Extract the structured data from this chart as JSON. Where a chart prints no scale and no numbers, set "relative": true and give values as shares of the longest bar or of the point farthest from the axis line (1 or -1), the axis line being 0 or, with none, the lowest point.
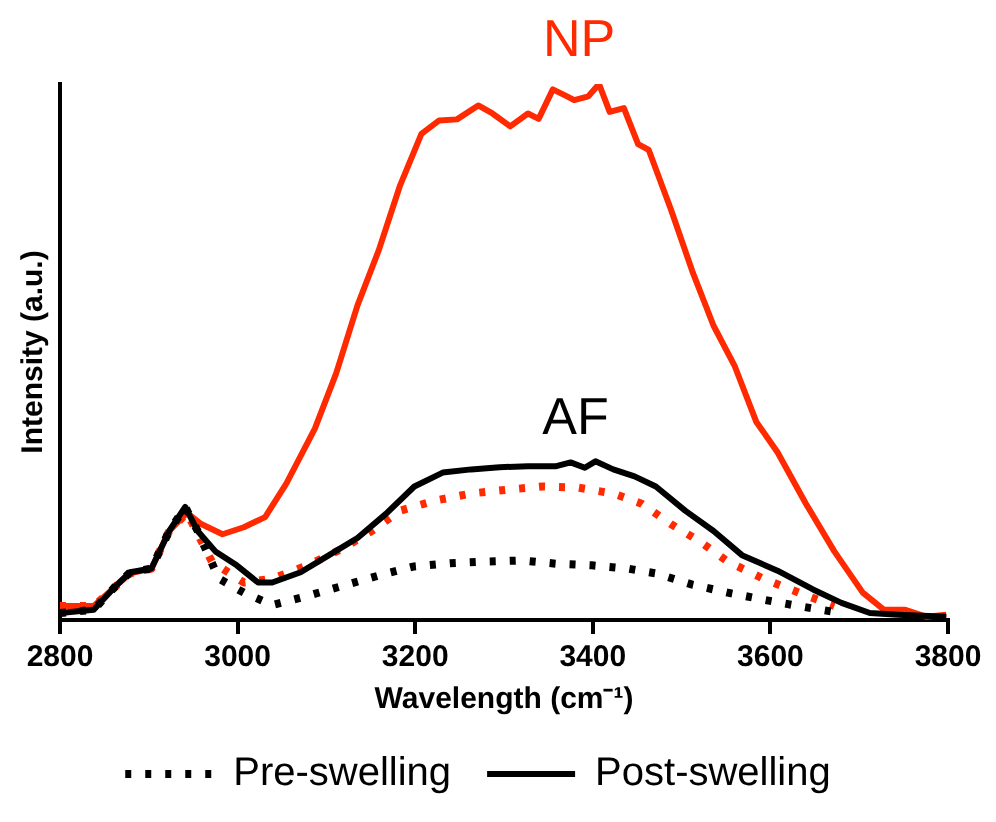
{
  "chart_data": {
    "type": "line",
    "relative": true,
    "xlabel": "Wavelength (cm⁻¹)",
    "ylabel": "Intensity (a.u.)",
    "xlim": [
      2800,
      3800
    ],
    "xticks": [
      2800,
      3000,
      3200,
      3400,
      3600,
      3800
    ],
    "grid": false,
    "legend": "bottom",
    "marker": "none",
    "line_style": "solid",
    "annotations": [
      "NP",
      "AF"
    ],
    "series": [
      {
        "name": "Pre-swelling",
        "color": "#000000",
        "line_style": "dotted",
        "x": [
          2800,
          2838,
          2863,
          2879,
          2903,
          2923,
          2941,
          2955,
          2979,
          3007,
          3039,
          3079,
          3119,
          3159,
          3199,
          3239,
          3279,
          3319,
          3359,
          3399,
          3439,
          3471,
          3512,
          3552,
          3592,
          3632,
          3672
        ],
        "values": [
          0.013,
          0.019,
          0.064,
          0.089,
          0.096,
          0.166,
          0.211,
          0.166,
          0.077,
          0.051,
          0.028,
          0.045,
          0.064,
          0.083,
          0.1,
          0.106,
          0.109,
          0.111,
          0.105,
          0.102,
          0.096,
          0.087,
          0.066,
          0.051,
          0.038,
          0.026,
          0.015
        ]
      },
      {
        "name": "Post-swelling",
        "color": "#000000",
        "x": [
          2800,
          2838,
          2863,
          2879,
          2903,
          2923,
          2941,
          2955,
          2975,
          2999,
          3023,
          3039,
          3071,
          3103,
          3135,
          3167,
          3199,
          3231,
          3263,
          3295,
          3327,
          3359,
          3375,
          3391,
          3403,
          3423,
          3447,
          3471,
          3504,
          3536,
          3568,
          3608,
          3648,
          3680,
          3712,
          3744,
          3798
        ],
        "values": [
          0.013,
          0.019,
          0.064,
          0.089,
          0.096,
          0.166,
          0.211,
          0.166,
          0.128,
          0.102,
          0.07,
          0.07,
          0.089,
          0.121,
          0.153,
          0.198,
          0.249,
          0.275,
          0.281,
          0.285,
          0.287,
          0.287,
          0.294,
          0.284,
          0.296,
          0.281,
          0.268,
          0.249,
          0.204,
          0.166,
          0.121,
          0.092,
          0.057,
          0.032,
          0.013,
          0.01,
          0.006
        ]
      },
      {
        "color": "#ff2a00",
        "x": [
          2800,
          2838,
          2879,
          2903,
          2923,
          2943,
          2959,
          2983,
          3007,
          3031,
          3055,
          3087,
          3111,
          3135,
          3159,
          3183,
          3207,
          3227,
          3247,
          3271,
          3287,
          3307,
          3327,
          3339,
          3355,
          3371,
          3379,
          3395,
          3407,
          3419,
          3435,
          3451,
          3463,
          3488,
          3512,
          3536,
          3560,
          3584,
          3608,
          3640,
          3672,
          3704,
          3728,
          3752,
          3776,
          3798
        ],
        "values": [
          0.026,
          0.026,
          0.087,
          0.096,
          0.166,
          0.2,
          0.179,
          0.16,
          0.173,
          0.192,
          0.255,
          0.357,
          0.46,
          0.587,
          0.69,
          0.811,
          0.907,
          0.932,
          0.934,
          0.96,
          0.945,
          0.921,
          0.945,
          0.935,
          0.99,
          0.977,
          0.97,
          0.977,
          1.0,
          0.948,
          0.955,
          0.888,
          0.877,
          0.766,
          0.651,
          0.549,
          0.473,
          0.37,
          0.313,
          0.217,
          0.128,
          0.051,
          0.019,
          0.019,
          0.006,
          0.01
        ]
      },
      {
        "color": "#ff2a00",
        "line_style": "dotted",
        "x": [
          2800,
          2838,
          2879,
          2903,
          2923,
          2943,
          2971,
          3007,
          3039,
          3079,
          3119,
          3151,
          3183,
          3223,
          3263,
          3303,
          3343,
          3383,
          3423,
          3455,
          3488,
          3520,
          3552,
          3592,
          3632,
          3672
        ],
        "values": [
          0.026,
          0.026,
          0.087,
          0.096,
          0.166,
          0.2,
          0.109,
          0.07,
          0.077,
          0.102,
          0.134,
          0.166,
          0.204,
          0.223,
          0.236,
          0.243,
          0.249,
          0.247,
          0.236,
          0.217,
          0.179,
          0.147,
          0.109,
          0.077,
          0.051,
          0.026
        ]
      }
    ]
  }
}
